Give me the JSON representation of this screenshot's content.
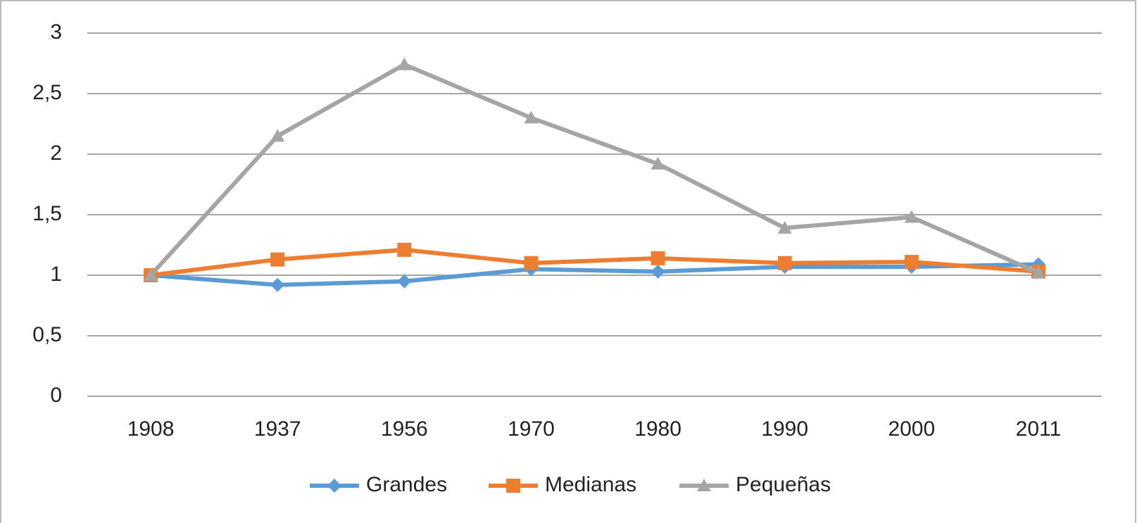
{
  "chart_data": {
    "type": "line",
    "categories": [
      "1908",
      "1937",
      "1956",
      "1970",
      "1980",
      "1990",
      "2000",
      "2011"
    ],
    "series": [
      {
        "name": "Grandes",
        "color": "#5b9bd5",
        "marker": "diamond",
        "values": [
          1.0,
          0.92,
          0.95,
          1.05,
          1.03,
          1.07,
          1.07,
          1.09
        ]
      },
      {
        "name": "Medianas",
        "color": "#ed7d31",
        "marker": "square",
        "values": [
          1.0,
          1.13,
          1.21,
          1.1,
          1.14,
          1.1,
          1.11,
          1.03
        ]
      },
      {
        "name": "Pequeñas",
        "color": "#a5a5a5",
        "marker": "triangle",
        "values": [
          1.0,
          2.15,
          2.74,
          2.3,
          1.92,
          1.39,
          1.48,
          1.02
        ]
      }
    ],
    "ylim": [
      0,
      3
    ],
    "yticks": [
      0,
      {
        "value": 0.5,
        "label": "0,5"
      },
      1,
      {
        "value": 1.5,
        "label": "1,5"
      },
      2,
      {
        "value": 2.5,
        "label": "2,5"
      },
      3
    ],
    "grid": true,
    "legend": "bottom"
  }
}
